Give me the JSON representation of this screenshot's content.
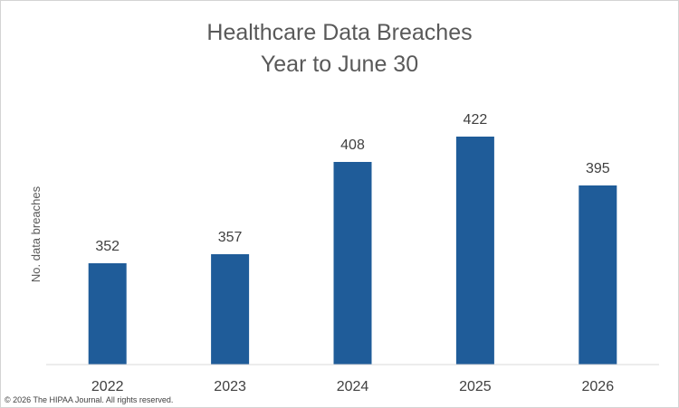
{
  "chart_data": {
    "type": "bar",
    "title_lines": [
      "Healthcare Data Breaches",
      "Year to June 30"
    ],
    "xlabel": "",
    "ylabel": "No. data breaches",
    "categories": [
      "2022",
      "2023",
      "2024",
      "2025",
      "2026"
    ],
    "values": [
      352,
      357,
      408,
      422,
      395
    ],
    "ylim": [
      300,
      430
    ],
    "grid": false,
    "legend": "none",
    "bar_color": "#1f5c99"
  },
  "footer": {
    "copyright": "© 2026 The HIPAA Journal. All rights reserved."
  }
}
